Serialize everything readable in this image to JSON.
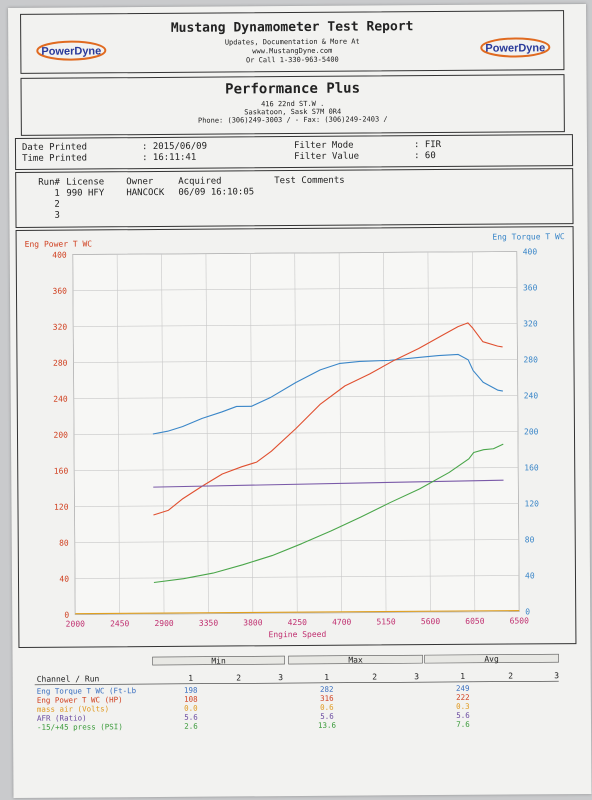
{
  "header": {
    "title": "Mustang Dynamometer Test Report",
    "line1": "Updates, Documentation & More At",
    "line2": "www.MustangDyne.com",
    "line3": "Or Call 1-330-963-5400",
    "logo_text": "PowerDyne"
  },
  "shop": {
    "name": "Performance Plus",
    "address": "416 22nd ST.W .",
    "city": "Saskatoon, Sask  S7M 0R4",
    "phone": "Phone: (306)249-3003 /  - Fax: (306)249-2403 /"
  },
  "info": {
    "date_label": "Date Printed",
    "date_value": ": 2015/06/09",
    "time_label": "Time Printed",
    "time_value": ": 16:11:41",
    "filter_mode_label": "Filter Mode",
    "filter_mode_value": ": FIR",
    "filter_value_label": "Filter Value",
    "filter_value_value": ": 60"
  },
  "runs": {
    "headers": [
      "Run#",
      "License",
      "Owner",
      "Acquired",
      "Test Comments"
    ],
    "rows": [
      {
        "run": "1",
        "license": "990 HFY",
        "owner": "HANCOCK",
        "acquired": "06/09 16:10:05",
        "comments": ""
      },
      {
        "run": "2",
        "license": "",
        "owner": "",
        "acquired": "",
        "comments": ""
      },
      {
        "run": "3",
        "license": "",
        "owner": "",
        "acquired": "",
        "comments": ""
      }
    ]
  },
  "chart_data": {
    "type": "line",
    "xlabel": "Engine Speed",
    "ylabel_left": "Eng Power T WC",
    "ylabel_right": "Eng Torque T WC",
    "xlim": [
      2000,
      6500
    ],
    "ylim_left": [
      0,
      400
    ],
    "ylim_right": [
      0,
      400
    ],
    "x_ticks": [
      "2000",
      "2450",
      "2900",
      "3350",
      "3800",
      "4250",
      "4700",
      "5150",
      "5600",
      "6050",
      "6500"
    ],
    "y_ticks_left": [
      "0",
      "40",
      "80",
      "120",
      "160",
      "200",
      "240",
      "280",
      "320",
      "360",
      "400"
    ],
    "y_ticks_right": [
      "0",
      "40",
      "80",
      "120",
      "160",
      "200",
      "240",
      "280",
      "320",
      "360",
      "400"
    ],
    "grid": true,
    "series": [
      {
        "name": "Eng Torque T WC",
        "color": "#3a86c8",
        "axis": "right",
        "x": [
          2800,
          2950,
          3100,
          3300,
          3500,
          3650,
          3800,
          4000,
          4250,
          4500,
          4700,
          4900,
          5200,
          5500,
          5700,
          5900,
          6000,
          6050,
          6150,
          6300,
          6350
        ],
        "y": [
          200,
          203,
          208,
          217,
          224,
          230,
          230,
          240,
          256,
          270,
          277,
          279,
          280,
          283,
          285,
          286,
          280,
          268,
          255,
          246,
          245
        ]
      },
      {
        "name": "Eng Power T WC",
        "color": "#e05030",
        "axis": "left",
        "x": [
          2800,
          2950,
          3100,
          3300,
          3500,
          3700,
          3850,
          4000,
          4250,
          4500,
          4750,
          5000,
          5250,
          5500,
          5750,
          5900,
          6000,
          6050,
          6150,
          6300,
          6350
        ],
        "y": [
          110,
          115,
          128,
          142,
          155,
          163,
          168,
          180,
          205,
          232,
          252,
          265,
          280,
          293,
          308,
          317,
          321,
          315,
          300,
          295,
          294
        ]
      },
      {
        "name": "AFR (Ratio)",
        "color": "#7a5aa8",
        "axis": "left",
        "x": [
          2800,
          6350
        ],
        "y": [
          141,
          146
        ]
      },
      {
        "name": "-15/+45 press (PSI)",
        "color": "#4aa64a",
        "axis": "left",
        "x": [
          2800,
          3100,
          3400,
          3700,
          4000,
          4300,
          4600,
          4900,
          5200,
          5500,
          5800,
          6000,
          6050,
          6150,
          6250,
          6350
        ],
        "y": [
          35,
          39,
          45,
          54,
          64,
          77,
          91,
          106,
          122,
          137,
          155,
          170,
          177,
          180,
          181,
          186
        ]
      },
      {
        "name": "mass air (Volts)",
        "color": "#e0a020",
        "axis": "left",
        "x": [
          2000,
          6500
        ],
        "y": [
          1,
          1
        ]
      }
    ]
  },
  "summary": {
    "group_headers": [
      "Min",
      "Max",
      "Avg"
    ],
    "channel_header": "Channel / Run",
    "run_numbers": [
      "1",
      "2",
      "3"
    ],
    "rows": [
      {
        "name": "Eng Torque T WC (Ft-Lb",
        "color": "#3a6fc0",
        "min": "198",
        "max": "282",
        "avg": "249"
      },
      {
        "name": "Eng Power T WC (HP)",
        "color": "#d04020",
        "min": "108",
        "max": "316",
        "avg": "222"
      },
      {
        "name": "mass air (Volts)",
        "color": "#e09a20",
        "min": "0.0",
        "max": "0.6",
        "avg": "0.3"
      },
      {
        "name": "AFR (Ratio)",
        "color": "#6a4aa0",
        "min": "5.6",
        "max": "5.6",
        "avg": "5.6"
      },
      {
        "name": "-15/+45 press (PSI)",
        "color": "#3a9a3a",
        "min": "2.6",
        "max": "13.6",
        "avg": "7.6"
      }
    ]
  }
}
